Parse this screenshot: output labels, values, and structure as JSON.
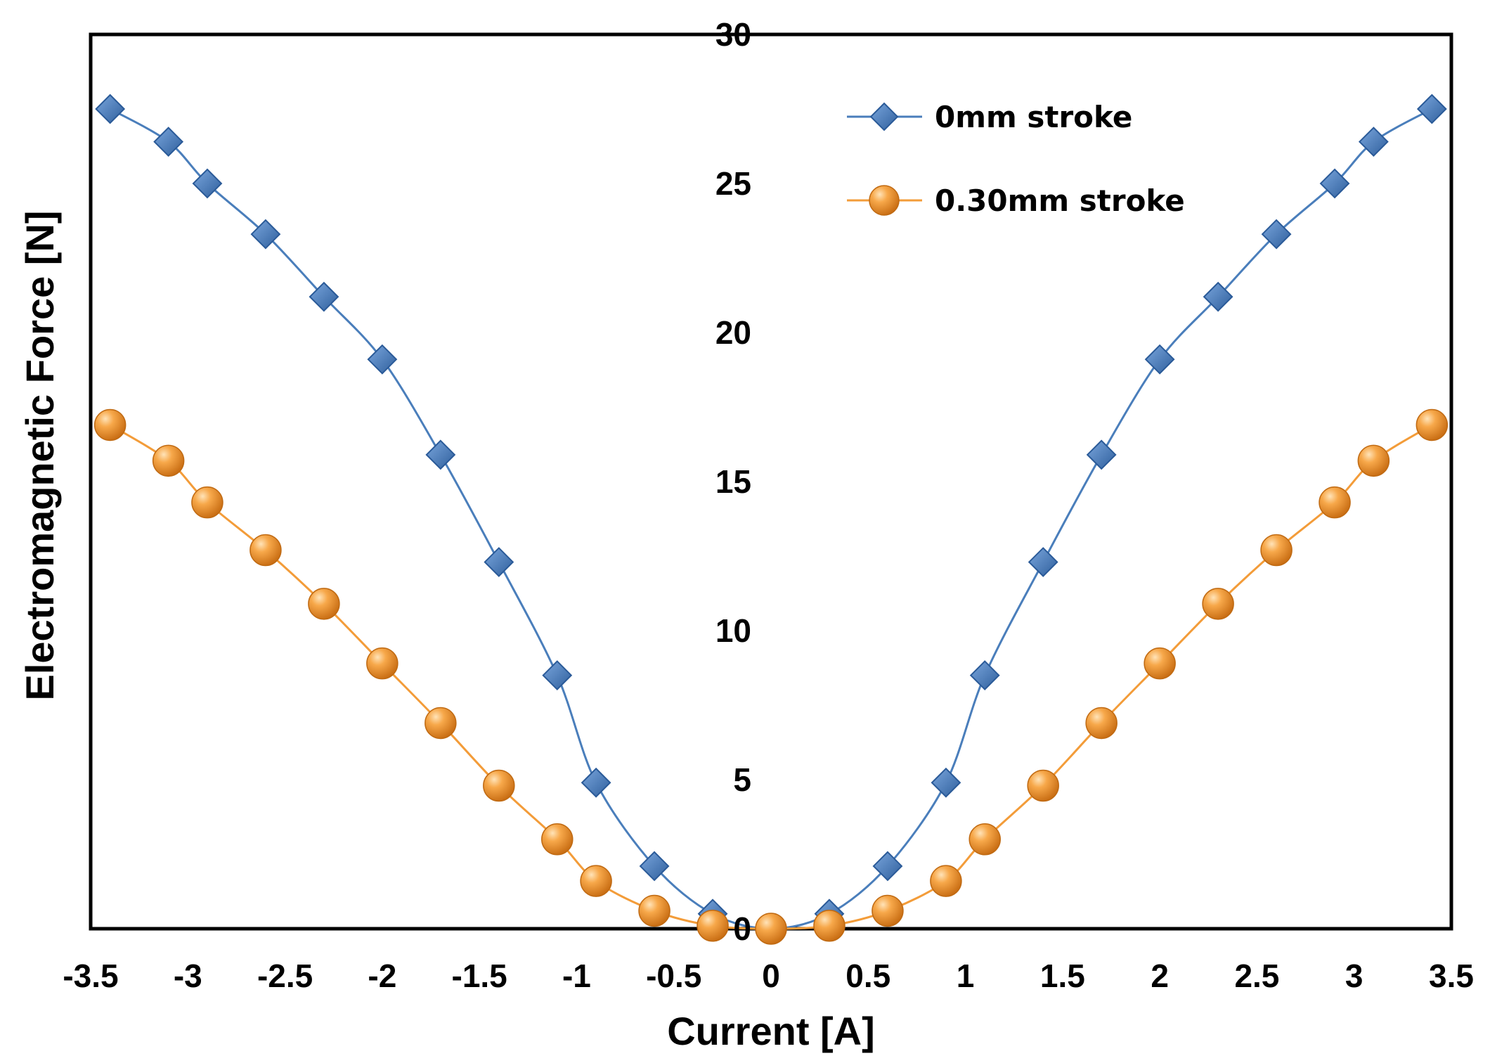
{
  "chart_data": {
    "type": "line",
    "title": "",
    "xlabel": "Current [A]",
    "ylabel": "Electromagnetic Force [N]",
    "xlim": [
      -3.5,
      3.5
    ],
    "ylim": [
      0,
      30
    ],
    "x_ticks": [
      "-3.5",
      "-3",
      "-2.5",
      "-2",
      "-1.5",
      "-1",
      "-0.5",
      "0",
      "0.5",
      "1",
      "1.5",
      "2",
      "2.5",
      "3",
      "3.5"
    ],
    "y_ticks": [
      "0",
      "5",
      "10",
      "15",
      "20",
      "25",
      "30"
    ],
    "x_tick_values": [
      -3.5,
      -3,
      -2.5,
      -2,
      -1.5,
      -1,
      -0.5,
      0,
      0.5,
      1,
      1.5,
      2,
      2.5,
      3,
      3.5
    ],
    "y_tick_values": [
      0,
      5,
      10,
      15,
      20,
      25,
      30
    ],
    "grid": false,
    "legend_position": "top-right",
    "x": [
      -3.4,
      -3.1,
      -2.9,
      -2.6,
      -2.3,
      -2.0,
      -1.7,
      -1.4,
      -1.1,
      -0.9,
      -0.6,
      -0.3,
      0,
      0.3,
      0.6,
      0.9,
      1.1,
      1.4,
      1.7,
      2.0,
      2.3,
      2.6,
      2.9,
      3.1,
      3.4
    ],
    "series": [
      {
        "name": "0mm stroke",
        "color": "#4a7ebb",
        "marker": "diamond",
        "values": [
          27.5,
          26.4,
          25.0,
          23.3,
          21.2,
          19.1,
          15.9,
          12.3,
          8.5,
          4.9,
          2.1,
          0.5,
          0.0,
          0.5,
          2.1,
          4.9,
          8.5,
          12.3,
          15.9,
          19.1,
          21.2,
          23.3,
          25.0,
          26.4,
          27.5
        ]
      },
      {
        "name": "0.30mm stroke",
        "color": "#f39c39",
        "marker": "circle",
        "values": [
          16.9,
          15.7,
          14.3,
          12.7,
          10.9,
          8.9,
          6.9,
          4.8,
          3.0,
          1.6,
          0.6,
          0.1,
          0.0,
          0.1,
          0.6,
          1.6,
          3.0,
          4.8,
          6.9,
          8.9,
          10.9,
          12.7,
          14.3,
          15.7,
          16.9
        ]
      }
    ]
  }
}
